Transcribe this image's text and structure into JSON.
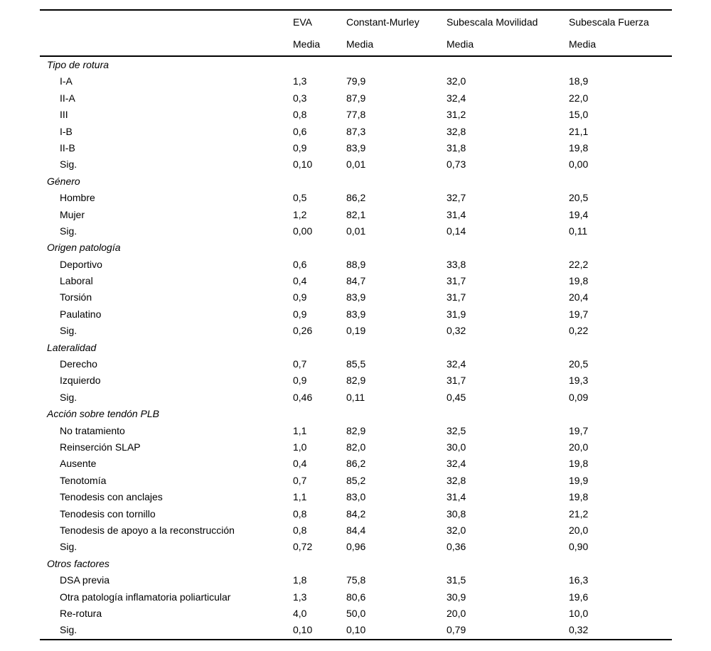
{
  "table": {
    "header": {
      "columns": [
        "EVA",
        "Constant-Murley",
        "Subescala Movilidad",
        "Subescala Fuerza"
      ],
      "media": "Media"
    },
    "sections": [
      {
        "title": "Tipo de rotura",
        "rows": [
          {
            "label": "I-A",
            "values": [
              "1,3",
              "79,9",
              "32,0",
              "18,9"
            ]
          },
          {
            "label": "II-A",
            "values": [
              "0,3",
              "87,9",
              "32,4",
              "22,0"
            ]
          },
          {
            "label": "III",
            "values": [
              "0,8",
              "77,8",
              "31,2",
              "15,0"
            ]
          },
          {
            "label": "I-B",
            "values": [
              "0,6",
              "87,3",
              "32,8",
              "21,1"
            ]
          },
          {
            "label": "II-B",
            "values": [
              "0,9",
              "83,9",
              "31,8",
              "19,8"
            ]
          },
          {
            "label": "Sig.",
            "values": [
              "0,10",
              "0,01",
              "0,73",
              "0,00"
            ]
          }
        ]
      },
      {
        "title": "Género",
        "rows": [
          {
            "label": "Hombre",
            "values": [
              "0,5",
              "86,2",
              "32,7",
              "20,5"
            ]
          },
          {
            "label": "Mujer",
            "values": [
              "1,2",
              "82,1",
              "31,4",
              "19,4"
            ]
          },
          {
            "label": "Sig.",
            "values": [
              "0,00",
              "0,01",
              "0,14",
              "0,11"
            ]
          }
        ]
      },
      {
        "title": "Origen patología",
        "rows": [
          {
            "label": "Deportivo",
            "values": [
              "0,6",
              "88,9",
              "33,8",
              "22,2"
            ]
          },
          {
            "label": "Laboral",
            "values": [
              "0,4",
              "84,7",
              "31,7",
              "19,8"
            ]
          },
          {
            "label": "Torsión",
            "values": [
              "0,9",
              "83,9",
              "31,7",
              "20,4"
            ]
          },
          {
            "label": "Paulatino",
            "values": [
              "0,9",
              "83,9",
              "31,9",
              "19,7"
            ]
          },
          {
            "label": "Sig.",
            "values": [
              "0,26",
              "0,19",
              "0,32",
              "0,22"
            ]
          }
        ]
      },
      {
        "title": "Lateralidad",
        "rows": [
          {
            "label": "Derecho",
            "values": [
              "0,7",
              "85,5",
              "32,4",
              "20,5"
            ]
          },
          {
            "label": "Izquierdo",
            "values": [
              "0,9",
              "82,9",
              "31,7",
              "19,3"
            ]
          },
          {
            "label": "Sig.",
            "values": [
              "0,46",
              "0,11",
              "0,45",
              "0,09"
            ]
          }
        ]
      },
      {
        "title": "Acción sobre tendón PLB",
        "rows": [
          {
            "label": "No tratamiento",
            "values": [
              "1,1",
              "82,9",
              "32,5",
              "19,7"
            ]
          },
          {
            "label": "Reinserción SLAP",
            "values": [
              "1,0",
              "82,0",
              "30,0",
              "20,0"
            ]
          },
          {
            "label": "Ausente",
            "values": [
              "0,4",
              "86,2",
              "32,4",
              "19,8"
            ]
          },
          {
            "label": "Tenotomía",
            "values": [
              "0,7",
              "85,2",
              "32,8",
              "19,9"
            ]
          },
          {
            "label": "Tenodesis con anclajes",
            "values": [
              "1,1",
              "83,0",
              "31,4",
              "19,8"
            ]
          },
          {
            "label": "Tenodesis con tornillo",
            "values": [
              "0,8",
              "84,2",
              "30,8",
              "21,2"
            ]
          },
          {
            "label": "Tenodesis de apoyo a la reconstrucción",
            "values": [
              "0,8",
              "84,4",
              "32,0",
              "20,0"
            ]
          },
          {
            "label": "Sig.",
            "values": [
              "0,72",
              "0,96",
              "0,36",
              "0,90"
            ]
          }
        ]
      },
      {
        "title": "Otros factores",
        "rows": [
          {
            "label": "DSA previa",
            "values": [
              "1,8",
              "75,8",
              "31,5",
              "16,3"
            ]
          },
          {
            "label": "Otra patología inflamatoria poliarticular",
            "values": [
              "1,3",
              "80,6",
              "30,9",
              "19,6"
            ]
          },
          {
            "label": "Re-rotura",
            "values": [
              "4,0",
              "50,0",
              "20,0",
              "10,0"
            ]
          },
          {
            "label": "Sig.",
            "values": [
              "0,10",
              "0,10",
              "0,79",
              "0,32"
            ]
          }
        ]
      }
    ]
  }
}
